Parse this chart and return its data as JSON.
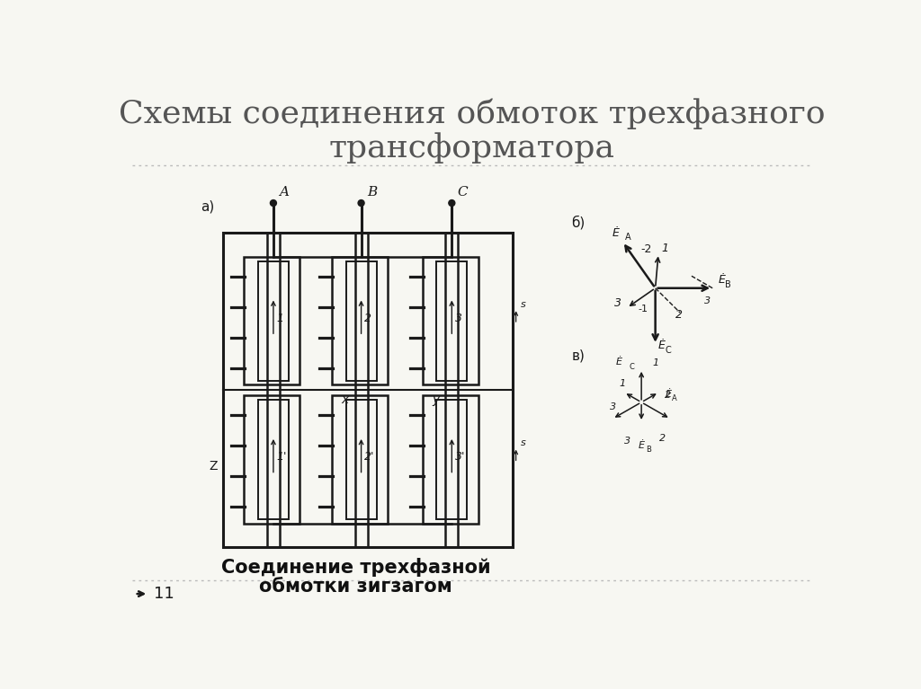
{
  "title_line1": "Схемы соединения обмоток трехфазного",
  "title_line2": "трансформатора",
  "caption_line1": "Соединение трехфазной",
  "caption_line2": "обмотки зигзагом",
  "slide_number": "11",
  "bg_color": "#f7f7f2",
  "title_color": "#555555",
  "diagram_color": "#1a1a1a",
  "caption_color": "#111111",
  "title_fontsize": 26,
  "caption_fontsize": 15,
  "slide_num_fontsize": 13,
  "sep_color": "#bbbbbb"
}
